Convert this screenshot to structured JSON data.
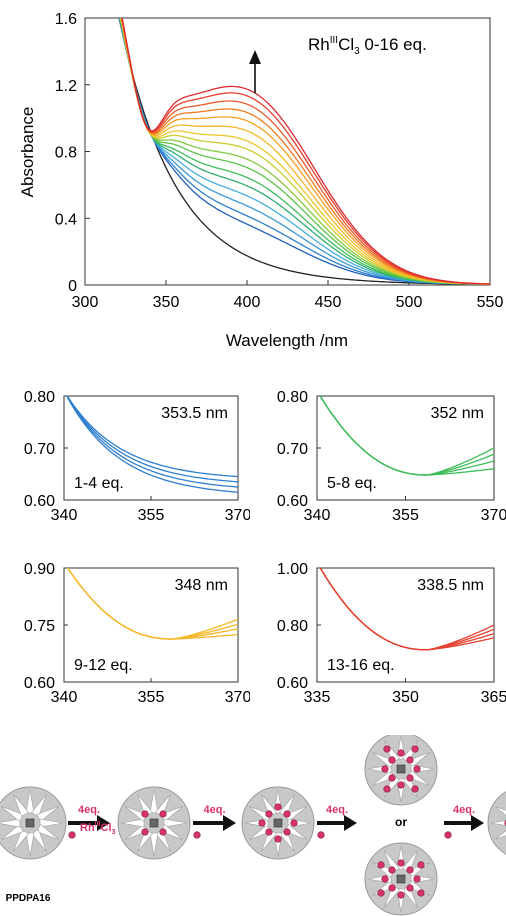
{
  "chart_data": [
    {
      "type": "line",
      "id": "main",
      "xlabel": "Wavelength /nm",
      "ylabel": "Absorbance",
      "xlim": [
        300,
        550
      ],
      "ylim": [
        0,
        1.6
      ],
      "xticks": [
        300,
        350,
        400,
        450,
        500,
        550
      ],
      "yticks": [
        0,
        0.4,
        0.8,
        1.2,
        1.6
      ],
      "ytick_labels": [
        "0",
        "0.4",
        "0.8",
        "1.2",
        "1.6"
      ],
      "annotation": {
        "main": "Rh",
        "sup": "III",
        "after": "Cl",
        "sub": "3",
        "tail": " 0-16 eq."
      },
      "grid": false,
      "series_colors": [
        "#222222",
        "#1f5fbf",
        "#2f7fd0",
        "#3a9ad8",
        "#45aedc",
        "#2fae6e",
        "#3fbd5a",
        "#5cc24a",
        "#86c83e",
        "#c8cc2c",
        "#eec62a",
        "#f5b728",
        "#f5a020",
        "#ef7a22",
        "#ea5a28",
        "#e4402e",
        "#de2a30"
      ],
      "peak_values": [
        0.05,
        0.24,
        0.29,
        0.35,
        0.41,
        0.47,
        0.52,
        0.58,
        0.63,
        0.69,
        0.74,
        0.8,
        0.86,
        0.91,
        0.96,
        1.01,
        1.05
      ],
      "series_note": "17 spectra, 0-16 eq., absorbance rising near 400 nm"
    },
    {
      "type": "line",
      "id": "inset-1",
      "xlim": [
        340,
        370
      ],
      "ylim": [
        0.6,
        0.8
      ],
      "xticks": [
        340,
        355,
        370
      ],
      "xtick_labels": [
        "340",
        "355",
        "370"
      ],
      "yticks": [
        0.6,
        0.7,
        0.8
      ],
      "ytick_labels": [
        "0.60",
        "0.70",
        "0.80"
      ],
      "label": "1-4 eq.",
      "isosbestic": "353.5 nm",
      "color": "#2f7fd0",
      "end_values": [
        0.615,
        0.625,
        0.635,
        0.645
      ]
    },
    {
      "type": "line",
      "id": "inset-2",
      "xlim": [
        340,
        370
      ],
      "ylim": [
        0.6,
        0.8
      ],
      "xticks": [
        340,
        355,
        370
      ],
      "xtick_labels": [
        "340",
        "355",
        "370"
      ],
      "yticks": [
        0.6,
        0.7,
        0.8
      ],
      "ytick_labels": [
        "0.60",
        "0.70",
        "0.80"
      ],
      "label": "5-8 eq.",
      "isosbestic": "352 nm",
      "color": "#3fbd5a",
      "end_values": [
        0.66,
        0.675,
        0.688,
        0.7
      ]
    },
    {
      "type": "line",
      "id": "inset-3",
      "xlim": [
        340,
        370
      ],
      "ylim": [
        0.6,
        0.9
      ],
      "xticks": [
        340,
        355,
        370
      ],
      "xtick_labels": [
        "340",
        "355",
        "370"
      ],
      "yticks": [
        0.6,
        0.75,
        0.9
      ],
      "ytick_labels": [
        "0.60",
        "0.75",
        "0.90"
      ],
      "label": "9-12 eq.",
      "isosbestic": "348 nm",
      "color": "#f5b728",
      "end_values": [
        0.725,
        0.74,
        0.752,
        0.765
      ]
    },
    {
      "type": "line",
      "id": "inset-4",
      "xlim": [
        335,
        365
      ],
      "ylim": [
        0.6,
        1.0
      ],
      "xticks": [
        335,
        350,
        365
      ],
      "xtick_labels": [
        "335",
        "350",
        "365"
      ],
      "yticks": [
        0.6,
        0.8,
        1.0
      ],
      "ytick_labels": [
        "0.60",
        "0.80",
        "1.00"
      ],
      "label": "13-16 eq.",
      "isosbestic": "338.5 nm",
      "color": "#e4402e",
      "end_values": [
        0.755,
        0.77,
        0.785,
        0.8
      ]
    }
  ],
  "scheme": {
    "start_label": "PPDPA16",
    "step_label": "4eq.",
    "reagent": {
      "main": "Rh",
      "sup": "III",
      "after": "Cl",
      "sub": "3"
    },
    "or_label": "or",
    "colors": {
      "disc": "#c8c8c8",
      "dendron": "#ffffff",
      "metal": "#d6336c",
      "core": "#555555",
      "arrow": "#111111",
      "step_text": "#d6336c"
    }
  }
}
